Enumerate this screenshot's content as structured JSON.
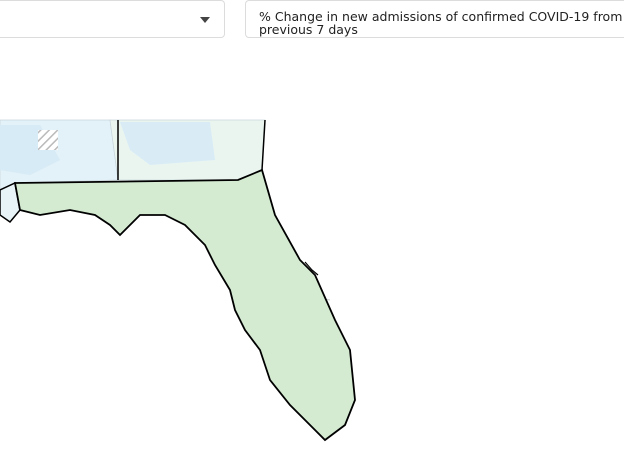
{
  "metric_select": {
    "label": "% Change in new admissions of confirmed COVID-19 from previous 7 days"
  }
}
